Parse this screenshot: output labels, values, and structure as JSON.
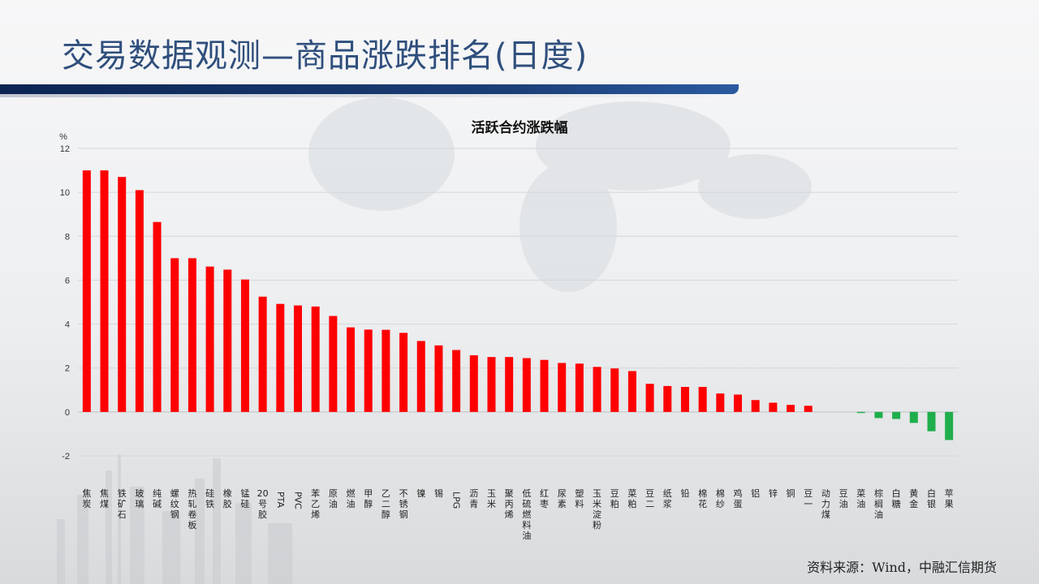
{
  "page": {
    "title": "交易数据观测—商品涨跌排名(日度)",
    "source": "资料来源：Wind，中融汇信期货"
  },
  "colors": {
    "positive": "#ff0000",
    "negative": "#1fae4b",
    "title_text": "#2f4f7c",
    "title_bar": "#0b2452"
  },
  "chart_data": {
    "type": "bar",
    "title": "活跃合约涨跌幅",
    "ylabel": "%",
    "ylim": [
      -2,
      12
    ],
    "yticks": [
      -2,
      0,
      2,
      4,
      6,
      8,
      10,
      12
    ],
    "grid": true,
    "categories": [
      "焦炭",
      "焦煤",
      "铁矿石",
      "玻璃",
      "纯碱",
      "螺纹钢",
      "热轧卷板",
      "硅铁",
      "橡胶",
      "锰硅",
      "20号胶",
      "PTA",
      "PVC",
      "苯乙烯",
      "原油",
      "燃油",
      "甲醇",
      "乙二醇",
      "不锈钢",
      "镍",
      "锡",
      "LPG",
      "沥青",
      "玉米",
      "聚丙烯",
      "低硫燃料油",
      "红枣",
      "尿素",
      "塑料",
      "玉米淀粉",
      "豆粕",
      "菜粕",
      "豆二",
      "纸浆",
      "铅",
      "棉花",
      "棉纱",
      "鸡蛋",
      "铝",
      "锌",
      "铜",
      "豆一",
      "动力煤",
      "豆油",
      "菜油",
      "棕榈油",
      "白糖",
      "黄金",
      "白银",
      "苹果"
    ],
    "values": [
      11.0,
      11.0,
      10.7,
      10.1,
      8.65,
      7.0,
      7.0,
      6.62,
      6.48,
      6.03,
      5.25,
      4.92,
      4.85,
      4.8,
      4.37,
      3.85,
      3.75,
      3.74,
      3.6,
      3.23,
      3.03,
      2.82,
      2.58,
      2.5,
      2.5,
      2.45,
      2.37,
      2.23,
      2.2,
      2.05,
      1.98,
      1.86,
      1.28,
      1.18,
      1.14,
      1.14,
      0.84,
      0.79,
      0.54,
      0.42,
      0.32,
      0.28,
      0.0,
      0.0,
      -0.05,
      -0.28,
      -0.32,
      -0.5,
      -0.88,
      -1.28
    ]
  }
}
